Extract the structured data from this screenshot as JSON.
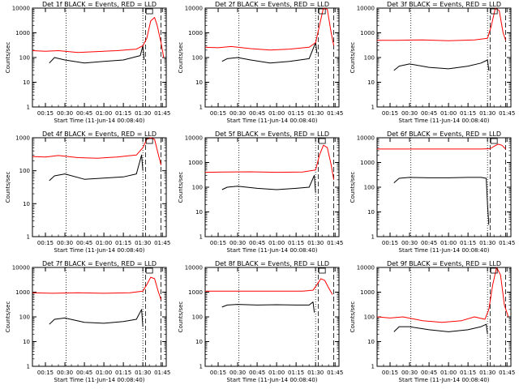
{
  "figure": {
    "x_axis_label": "Start Time (11-Jun-14 00:08:40)",
    "y_axis_label": "Counts/sec",
    "x_tick_labels": [
      "00:15",
      "00:30",
      "00:45",
      "01:00",
      "01:15",
      "01:30",
      "01:45"
    ],
    "y_tick_labels": [
      "1",
      "10",
      "100",
      "1000",
      "10000"
    ],
    "legend_lines": {
      "events_color": "#000000",
      "lld_color": "#ff0000"
    }
  },
  "chart_data": [
    {
      "type": "line",
      "title": "Det 1f BLACK = Events, RED = LLD",
      "x_unit": "minutes after 00:00",
      "xlim": [
        5,
        108
      ],
      "yscale": "log",
      "ylim": [
        1,
        10000
      ],
      "vlines": [
        {
          "x": 31,
          "style": "dotted"
        },
        {
          "x": 90,
          "style": "dotted"
        },
        {
          "x": 92,
          "style": "dashed"
        },
        {
          "x": 104,
          "style": "dashed"
        }
      ],
      "series": [
        {
          "color": "#000000",
          "points": [
            [
              18,
              60
            ],
            [
              22,
              100
            ],
            [
              30,
              80
            ],
            [
              45,
              60
            ],
            [
              60,
              70
            ],
            [
              75,
              80
            ],
            [
              88,
              120
            ],
            [
              90,
              300
            ],
            [
              91,
              80
            ]
          ]
        },
        {
          "color": "#ff0000",
          "points": [
            [
              5,
              190
            ],
            [
              15,
              180
            ],
            [
              25,
              190
            ],
            [
              40,
              160
            ],
            [
              55,
              175
            ],
            [
              70,
              190
            ],
            [
              85,
              220
            ],
            [
              90,
              300
            ],
            [
              93,
              600
            ],
            [
              96,
              3000
            ],
            [
              99,
              4200
            ],
            [
              101,
              2000
            ],
            [
              104,
              400
            ],
            [
              106,
              100
            ]
          ]
        }
      ]
    },
    {
      "type": "line",
      "title": "Det 2f BLACK = Events, RED = LLD",
      "x_unit": "minutes after 00:00",
      "xlim": [
        5,
        108
      ],
      "yscale": "log",
      "ylim": [
        1,
        10000
      ],
      "vlines": [
        {
          "x": 31,
          "style": "dotted"
        },
        {
          "x": 90,
          "style": "dotted"
        },
        {
          "x": 92,
          "style": "dashed"
        },
        {
          "x": 104,
          "style": "dashed"
        }
      ],
      "series": [
        {
          "color": "#000000",
          "points": [
            [
              18,
              70
            ],
            [
              22,
              90
            ],
            [
              30,
              100
            ],
            [
              40,
              80
            ],
            [
              55,
              60
            ],
            [
              70,
              70
            ],
            [
              85,
              90
            ],
            [
              90,
              400
            ],
            [
              91,
              150
            ]
          ]
        },
        {
          "color": "#ff0000",
          "points": [
            [
              5,
              260
            ],
            [
              15,
              250
            ],
            [
              25,
              280
            ],
            [
              40,
              230
            ],
            [
              55,
              200
            ],
            [
              70,
              220
            ],
            [
              85,
              260
            ],
            [
              90,
              400
            ],
            [
              93,
              2000
            ],
            [
              96,
              10000
            ],
            [
              99,
              9000
            ],
            [
              102,
              1000
            ],
            [
              104,
              300
            ]
          ]
        }
      ]
    },
    {
      "type": "line",
      "title": "Det 3f BLACK = Events, RED = LLD",
      "x_unit": "minutes after 00:00",
      "xlim": [
        5,
        108
      ],
      "yscale": "log",
      "ylim": [
        1,
        10000
      ],
      "vlines": [
        {
          "x": 31,
          "style": "dotted"
        },
        {
          "x": 90,
          "style": "dotted"
        },
        {
          "x": 92,
          "style": "dashed"
        },
        {
          "x": 104,
          "style": "dashed"
        }
      ],
      "series": [
        {
          "color": "#000000",
          "points": [
            [
              18,
              30
            ],
            [
              22,
              45
            ],
            [
              30,
              55
            ],
            [
              45,
              40
            ],
            [
              60,
              35
            ],
            [
              75,
              45
            ],
            [
              85,
              60
            ],
            [
              90,
              80
            ],
            [
              91,
              30
            ]
          ]
        },
        {
          "color": "#ff0000",
          "points": [
            [
              5,
              500
            ],
            [
              20,
              500
            ],
            [
              40,
              520
            ],
            [
              60,
              480
            ],
            [
              80,
              520
            ],
            [
              90,
              600
            ],
            [
              93,
              2000
            ],
            [
              96,
              10000
            ],
            [
              99,
              8000
            ],
            [
              102,
              1000
            ],
            [
              104,
              500
            ]
          ]
        }
      ]
    },
    {
      "type": "line",
      "title": "Det 4f BLACK = Events, RED = LLD",
      "x_unit": "minutes after 00:00",
      "xlim": [
        5,
        108
      ],
      "yscale": "log",
      "ylim": [
        1,
        1000
      ],
      "vlines": [
        {
          "x": 31,
          "style": "dotted"
        },
        {
          "x": 90,
          "style": "dotted"
        },
        {
          "x": 92,
          "style": "dashed"
        },
        {
          "x": 104,
          "style": "dashed"
        }
      ],
      "series": [
        {
          "color": "#000000",
          "points": [
            [
              18,
              50
            ],
            [
              22,
              70
            ],
            [
              30,
              80
            ],
            [
              45,
              55
            ],
            [
              60,
              60
            ],
            [
              75,
              65
            ],
            [
              85,
              80
            ],
            [
              89,
              300
            ],
            [
              90,
              100
            ]
          ]
        },
        {
          "color": "#ff0000",
          "points": [
            [
              5,
              270
            ],
            [
              15,
              260
            ],
            [
              25,
              290
            ],
            [
              40,
              250
            ],
            [
              55,
              240
            ],
            [
              70,
              260
            ],
            [
              85,
              300
            ],
            [
              90,
              500
            ],
            [
              93,
              900
            ],
            [
              96,
              1000
            ],
            [
              99,
              900
            ],
            [
              102,
              300
            ],
            [
              104,
              150
            ]
          ]
        }
      ]
    },
    {
      "type": "line",
      "title": "Det 5f BLACK = Events, RED = LLD",
      "x_unit": "minutes after 00:00",
      "xlim": [
        5,
        108
      ],
      "yscale": "log",
      "ylim": [
        1,
        10000
      ],
      "vlines": [
        {
          "x": 31,
          "style": "dotted"
        },
        {
          "x": 90,
          "style": "dotted"
        },
        {
          "x": 92,
          "style": "dashed"
        },
        {
          "x": 104,
          "style": "dashed"
        }
      ],
      "series": [
        {
          "color": "#000000",
          "points": [
            [
              18,
              80
            ],
            [
              22,
              100
            ],
            [
              30,
              110
            ],
            [
              45,
              90
            ],
            [
              60,
              80
            ],
            [
              75,
              90
            ],
            [
              85,
              100
            ],
            [
              89,
              300
            ],
            [
              90,
              60
            ]
          ]
        },
        {
          "color": "#ff0000",
          "points": [
            [
              5,
              400
            ],
            [
              20,
              410
            ],
            [
              40,
              420
            ],
            [
              60,
              400
            ],
            [
              80,
              410
            ],
            [
              90,
              500
            ],
            [
              93,
              2000
            ],
            [
              96,
              5000
            ],
            [
              99,
              4000
            ],
            [
              102,
              800
            ],
            [
              104,
              200
            ]
          ]
        }
      ]
    },
    {
      "type": "line",
      "title": "Det 6f BLACK = Events, RED = LLD",
      "x_unit": "minutes after 00:00",
      "xlim": [
        5,
        108
      ],
      "yscale": "log",
      "ylim": [
        1,
        10000
      ],
      "vlines": [
        {
          "x": 31,
          "style": "dotted"
        },
        {
          "x": 90,
          "style": "dotted"
        },
        {
          "x": 92,
          "style": "dashed"
        },
        {
          "x": 104,
          "style": "dashed"
        }
      ],
      "series": [
        {
          "color": "#000000",
          "points": [
            [
              18,
              150
            ],
            [
              22,
              230
            ],
            [
              30,
              250
            ],
            [
              45,
              240
            ],
            [
              60,
              240
            ],
            [
              75,
              250
            ],
            [
              85,
              250
            ],
            [
              89,
              230
            ],
            [
              90,
              20
            ],
            [
              91,
              3
            ]
          ]
        },
        {
          "color": "#ff0000",
          "points": [
            [
              5,
              3500
            ],
            [
              30,
              3500
            ],
            [
              60,
              3500
            ],
            [
              85,
              3500
            ],
            [
              92,
              3600
            ],
            [
              95,
              4500
            ],
            [
              98,
              5500
            ],
            [
              101,
              5000
            ],
            [
              104,
              3500
            ]
          ]
        }
      ]
    },
    {
      "type": "line",
      "title": "Det 7f BLACK = Events, RED = LLD",
      "x_unit": "minutes after 00:00",
      "xlim": [
        5,
        108
      ],
      "yscale": "log",
      "ylim": [
        1,
        10000
      ],
      "vlines": [
        {
          "x": 31,
          "style": "dotted"
        },
        {
          "x": 90,
          "style": "dotted"
        },
        {
          "x": 92,
          "style": "dashed"
        },
        {
          "x": 104,
          "style": "dashed"
        }
      ],
      "series": [
        {
          "color": "#000000",
          "points": [
            [
              18,
              50
            ],
            [
              22,
              80
            ],
            [
              30,
              90
            ],
            [
              45,
              60
            ],
            [
              60,
              55
            ],
            [
              75,
              65
            ],
            [
              85,
              80
            ],
            [
              89,
              200
            ],
            [
              90,
              40
            ]
          ]
        },
        {
          "color": "#ff0000",
          "points": [
            [
              5,
              950
            ],
            [
              20,
              900
            ],
            [
              40,
              950
            ],
            [
              60,
              900
            ],
            [
              80,
              950
            ],
            [
              90,
              1100
            ],
            [
              93,
              2000
            ],
            [
              96,
              4000
            ],
            [
              99,
              3500
            ],
            [
              102,
              1000
            ],
            [
              104,
              500
            ]
          ]
        }
      ]
    },
    {
      "type": "line",
      "title": "Det 8f BLACK = Events, RED = LLD",
      "x_unit": "minutes after 00:00",
      "xlim": [
        5,
        108
      ],
      "yscale": "log",
      "ylim": [
        1,
        10000
      ],
      "vlines": [
        {
          "x": 31,
          "style": "dotted"
        },
        {
          "x": 90,
          "style": "dotted"
        },
        {
          "x": 92,
          "style": "dashed"
        },
        {
          "x": 104,
          "style": "dashed"
        }
      ],
      "series": [
        {
          "color": "#000000",
          "points": [
            [
              18,
              250
            ],
            [
              22,
              300
            ],
            [
              30,
              320
            ],
            [
              45,
              300
            ],
            [
              60,
              310
            ],
            [
              75,
              300
            ],
            [
              85,
              300
            ],
            [
              88,
              400
            ],
            [
              89,
              150
            ]
          ]
        },
        {
          "color": "#ff0000",
          "points": [
            [
              5,
              1100
            ],
            [
              20,
              1100
            ],
            [
              40,
              1100
            ],
            [
              60,
              1100
            ],
            [
              80,
              1100
            ],
            [
              88,
              1200
            ],
            [
              91,
              2000
            ],
            [
              94,
              3500
            ],
            [
              97,
              3000
            ],
            [
              100,
              1500
            ],
            [
              103,
              800
            ]
          ]
        }
      ]
    },
    {
      "type": "line",
      "title": "Det 9f BLACK = Events, RED = LLD",
      "x_unit": "minutes after 00:00",
      "xlim": [
        5,
        108
      ],
      "yscale": "log",
      "ylim": [
        1,
        10000
      ],
      "vlines": [
        {
          "x": 31,
          "style": "dotted"
        },
        {
          "x": 90,
          "style": "dotted"
        },
        {
          "x": 92,
          "style": "dashed"
        },
        {
          "x": 104,
          "style": "dashed"
        }
      ],
      "series": [
        {
          "color": "#000000",
          "points": [
            [
              18,
              25
            ],
            [
              22,
              40
            ],
            [
              30,
              40
            ],
            [
              45,
              30
            ],
            [
              60,
              25
            ],
            [
              75,
              30
            ],
            [
              85,
              40
            ],
            [
              89,
              50
            ],
            [
              90,
              20
            ]
          ]
        },
        {
          "color": "#ff0000",
          "points": [
            [
              5,
              100
            ],
            [
              15,
              90
            ],
            [
              25,
              100
            ],
            [
              40,
              70
            ],
            [
              55,
              60
            ],
            [
              70,
              70
            ],
            [
              80,
              100
            ],
            [
              88,
              80
            ],
            [
              91,
              200
            ],
            [
              94,
              2000
            ],
            [
              97,
              10000
            ],
            [
              100,
              5000
            ],
            [
              103,
              300
            ],
            [
              106,
              100
            ]
          ]
        }
      ]
    }
  ]
}
